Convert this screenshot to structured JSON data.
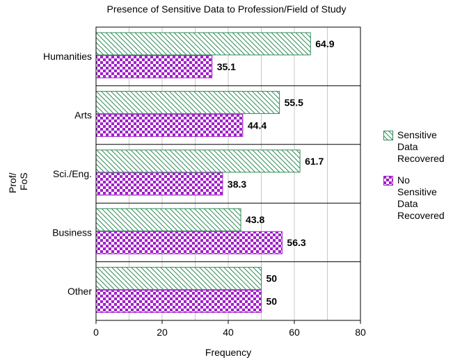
{
  "chart_data": {
    "type": "bar",
    "orientation": "horizontal",
    "title": "Presence of Sensitive Data to Profession/Field of Study",
    "xlabel": "Frequency",
    "ylabel_lines": [
      "Prof/",
      "FoS"
    ],
    "categories": [
      "Humanities",
      "Arts",
      "Sci./Eng.",
      "Business",
      "Other"
    ],
    "series": [
      {
        "name": "Sensitive Data Recovered",
        "legend_lines": [
          "Sensitive",
          "Data",
          "Recovered"
        ],
        "values": [
          64.9,
          55.5,
          61.7,
          43.8,
          50
        ],
        "labels": [
          "64.9",
          "55.5",
          "61.7",
          "43.8",
          "50"
        ],
        "color": "#2e8b57",
        "pattern": "diagonal-hatch"
      },
      {
        "name": "No Sensitive Data Recovered",
        "legend_lines": [
          "No",
          "Sensitive",
          "Data",
          "Recovered"
        ],
        "values": [
          35.1,
          44.4,
          38.3,
          56.3,
          50
        ],
        "labels": [
          "35.1",
          "44.4",
          "38.3",
          "56.3",
          "50"
        ],
        "color": "#a020c8",
        "pattern": "checkerboard"
      }
    ],
    "xlim": [
      0,
      80
    ],
    "xticks": [
      0,
      20,
      40,
      60,
      80
    ],
    "xtick_labels": [
      "0",
      "20",
      "40",
      "60",
      "80"
    ],
    "grid": "vertical",
    "legend": "right"
  }
}
